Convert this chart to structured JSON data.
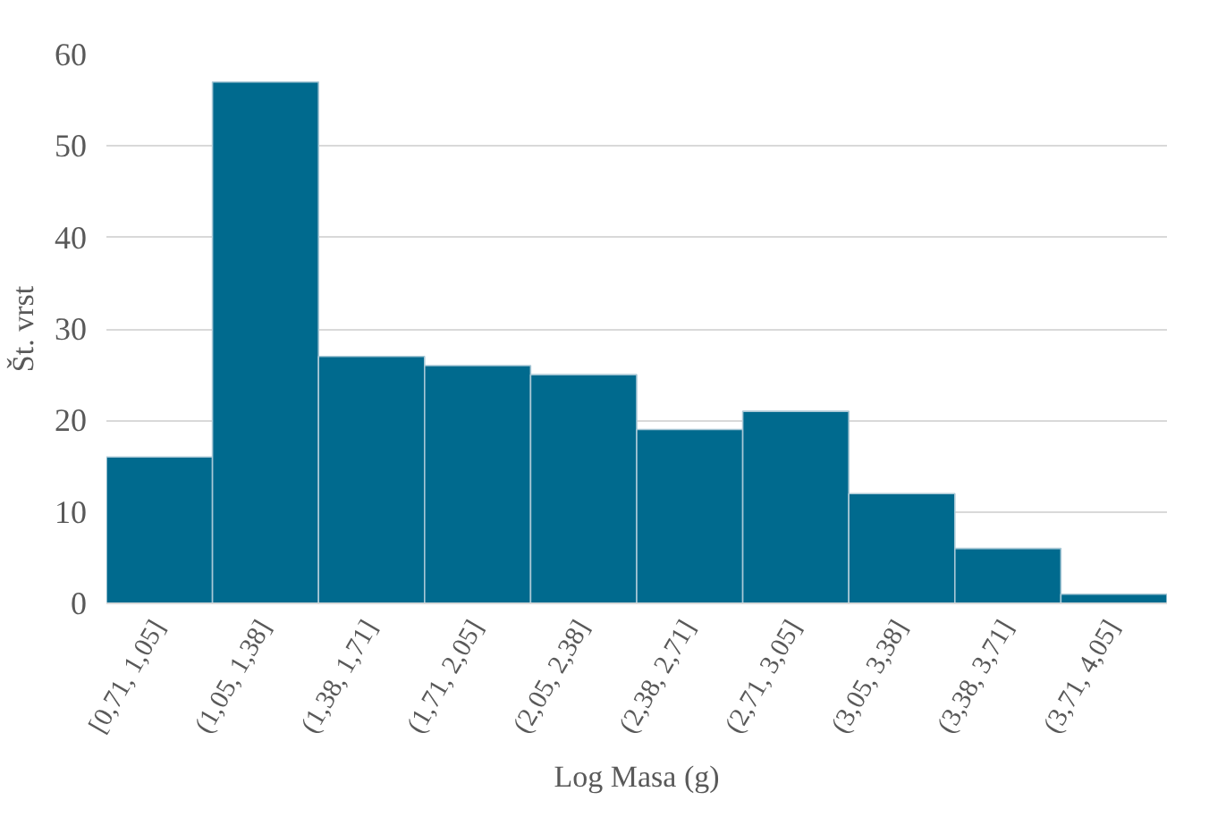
{
  "chart_data": {
    "type": "bar",
    "xlabel": "Log Masa (g)",
    "ylabel": "Št. vrst",
    "categories": [
      "[0,71, 1,05]",
      "(1,05, 1,38]",
      "(1,38, 1,71]",
      "(1,71, 2,05]",
      "(2,05, 2,38]",
      "(2,38, 2,71]",
      "(2,71, 3,05]",
      "(3,05, 3,38]",
      "(3,38, 3,71]",
      "(3,71, 4,05]"
    ],
    "values": [
      16,
      57,
      27,
      26,
      25,
      19,
      21,
      12,
      6,
      1
    ],
    "color": "#006a8e",
    "ylim": [
      0,
      60
    ],
    "yticks": [
      0,
      10,
      20,
      30,
      40,
      50,
      60
    ],
    "grid": "y"
  }
}
